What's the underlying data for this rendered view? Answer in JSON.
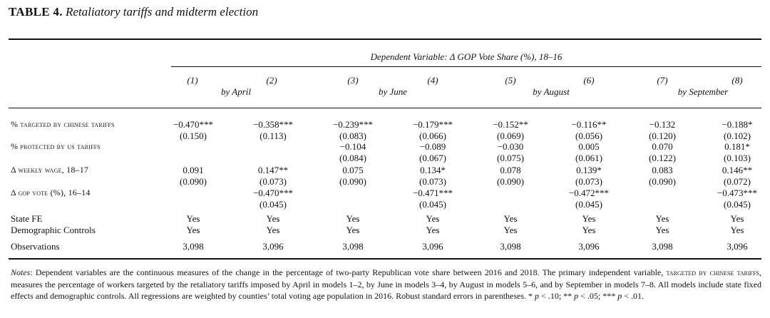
{
  "caption": {
    "label": "TABLE 4.",
    "title": "Retaliatory tariffs and midterm election"
  },
  "header": {
    "dependent_variable": "Dependent Variable: Δ GOP Vote Share (%), 18–16",
    "model_numbers": [
      "(1)",
      "(2)",
      "(3)",
      "(4)",
      "(5)",
      "(6)",
      "(7)",
      "(8)"
    ],
    "groups": [
      "by April",
      "by June",
      "by August",
      "by September"
    ]
  },
  "rows": [
    {
      "label": "% targeted by chinese tariffs",
      "coef": [
        "−0.470***",
        "−0.358***",
        "−0.239***",
        "−0.179***",
        "−0.152**",
        "−0.116**",
        "−0.132",
        "−0.188*"
      ],
      "se": [
        "(0.150)",
        "(0.113)",
        "(0.083)",
        "(0.066)",
        "(0.069)",
        "(0.056)",
        "(0.120)",
        "(0.102)"
      ]
    },
    {
      "label": "% protected by us tariffs",
      "coef": [
        "",
        "",
        "−0.104",
        "−0.089",
        "−0.030",
        "0.005",
        "0.070",
        "0.181*"
      ],
      "se": [
        "",
        "",
        "(0.084)",
        "(0.067)",
        "(0.075)",
        "(0.061)",
        "(0.122)",
        "(0.103)"
      ]
    },
    {
      "label": "Δ weekly wage, 18–17",
      "coef": [
        "0.091",
        "0.147**",
        "0.075",
        "0.134*",
        "0.078",
        "0.139*",
        "0.083",
        "0.146**"
      ],
      "se": [
        "(0.090)",
        "(0.073)",
        "(0.090)",
        "(0.073)",
        "(0.090)",
        "(0.073)",
        "(0.090)",
        "(0.072)"
      ]
    },
    {
      "label": "Δ gop vote (%), 16–14",
      "coef": [
        "",
        "−0.470***",
        "",
        "−0.471***",
        "",
        "−0.472***",
        "",
        "−0.473***"
      ],
      "se": [
        "",
        "(0.045)",
        "",
        "(0.045)",
        "",
        "(0.045)",
        "",
        "(0.045)"
      ]
    }
  ],
  "controls": [
    {
      "label": "State FE",
      "values": [
        "Yes",
        "Yes",
        "Yes",
        "Yes",
        "Yes",
        "Yes",
        "Yes",
        "Yes"
      ]
    },
    {
      "label": "Demographic Controls",
      "values": [
        "Yes",
        "Yes",
        "Yes",
        "Yes",
        "Yes",
        "Yes",
        "Yes",
        "Yes"
      ]
    }
  ],
  "observations": {
    "label": "Observations",
    "values": [
      "3,098",
      "3,096",
      "3,098",
      "3,096",
      "3,098",
      "3,096",
      "3,098",
      "3,096"
    ]
  },
  "notes": {
    "lead": "Notes",
    "part1": ": Dependent variables are the continuous measures of the change in the percentage of two-party Republican vote share between 2016 and 2018. The primary independent variable, ",
    "smallcaps": "targeted by chinese tariffs",
    "part2": ", measures the percentage of workers targeted by the retaliatory tariffs imposed by April in models 1–2, by June in models 3–4, by August in models 5–6, and by September in models 7–8. All models include state fixed effects and demographic controls. All regressions are weighted by counties’ total voting age population in 2016. Robust standard errors in parentheses. * ",
    "p1": "p",
    "t1": " < .10; ** ",
    "p2": "p",
    "t2": " < .05; *** ",
    "p3": "p",
    "t3": " < .01."
  }
}
